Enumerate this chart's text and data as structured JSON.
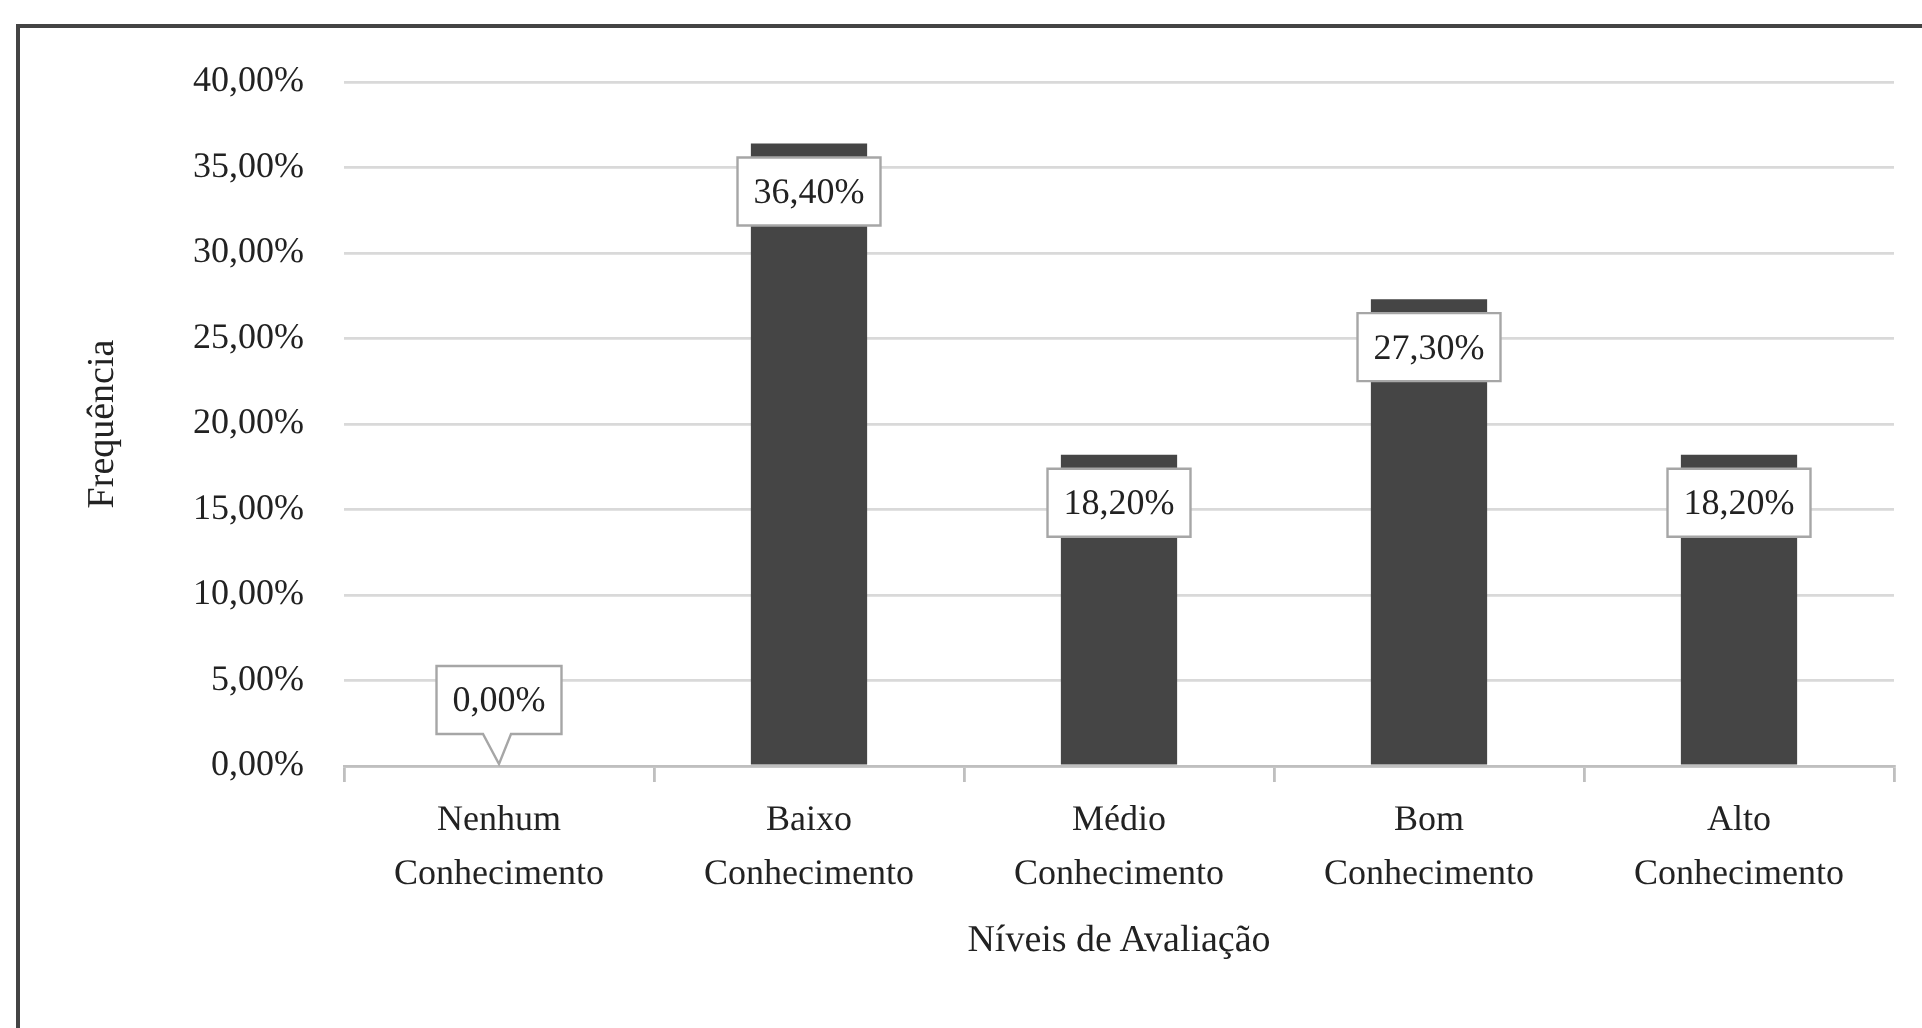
{
  "chart_data": {
    "type": "bar",
    "xlabel": "Níveis de Avaliação",
    "ylabel": "Frequência",
    "categories": [
      "Nenhum Conhecimento",
      "Baixo Conhecimento",
      "Médio Conhecimento",
      "Bom Conhecimento",
      "Alto Conhecimento"
    ],
    "values": [
      0,
      36.4,
      18.2,
      27.3,
      18.2
    ],
    "color": "#454545",
    "value_labels": [
      "0,00%",
      "36,40%",
      "18,20%",
      "27,30%",
      "18,20%"
    ],
    "ylim": [
      0,
      40
    ],
    "yticks": [
      {
        "value": 0,
        "label": "0,00%"
      },
      {
        "value": 5,
        "label": "5,00%"
      },
      {
        "value": 10,
        "label": "10,00%"
      },
      {
        "value": 15,
        "label": "15,00%"
      },
      {
        "value": 20,
        "label": "20,00%"
      },
      {
        "value": 25,
        "label": "25,00%"
      },
      {
        "value": 30,
        "label": "30,00%"
      },
      {
        "value": 35,
        "label": "35,00%"
      },
      {
        "value": 40,
        "label": "40,00%"
      }
    ],
    "grid": "y",
    "legend": false
  }
}
